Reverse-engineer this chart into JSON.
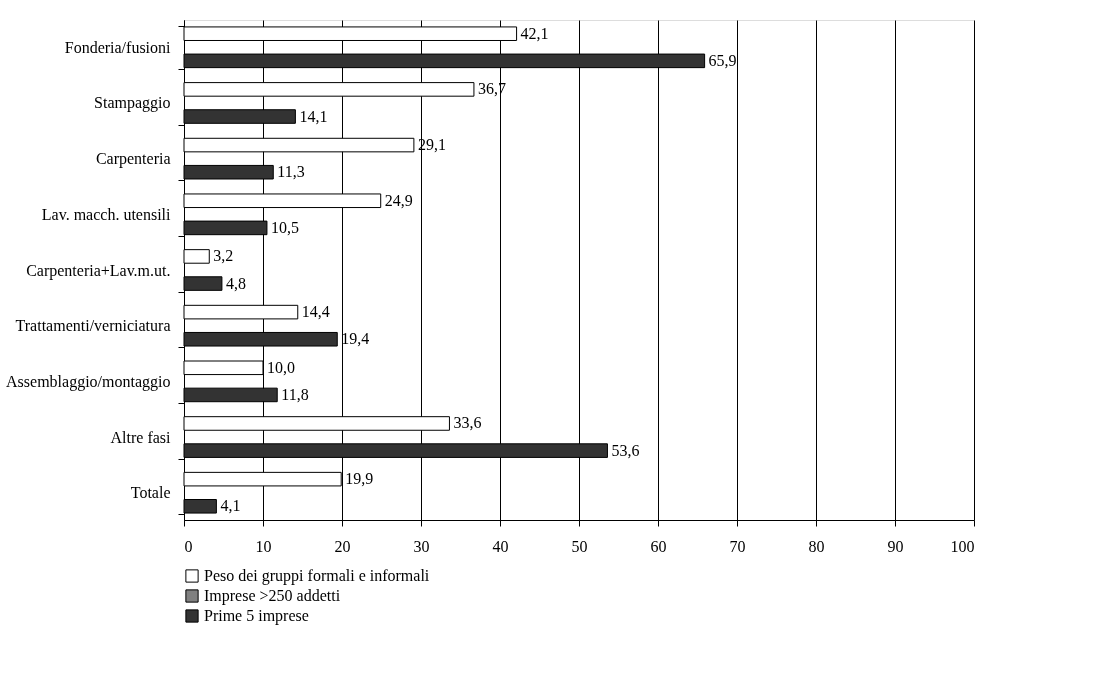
{
  "chart_data": {
    "type": "bar",
    "orientation": "horizontal",
    "categories": [
      "Fonderia/fusioni",
      "Stampaggio",
      "Carpenteria",
      "Lav. macch. utensili",
      "Carpenteria+Lav.m.ut.",
      "Trattamenti/verniciatura",
      "Assemblaggio/montaggio",
      "Altre fasi",
      "Totale"
    ],
    "series": [
      {
        "name": "Peso dei gruppi formali e informali",
        "color": "#ffffff",
        "values": [
          42.1,
          36.7,
          29.1,
          24.9,
          3.2,
          14.4,
          10.0,
          33.6,
          19.9
        ],
        "value_labels": [
          "42,1",
          "36,7",
          "29,1",
          "24,9",
          "3,2",
          "14,4",
          "10,0",
          "33,6",
          "19,9"
        ]
      },
      {
        "name": "Imprese >250 addetti",
        "color": "#808080",
        "values": [
          null,
          null,
          null,
          null,
          null,
          null,
          null,
          null,
          null
        ]
      },
      {
        "name": "Prime 5 imprese",
        "color": "#333333",
        "values": [
          65.9,
          14.1,
          11.3,
          10.5,
          4.8,
          19.4,
          11.8,
          53.6,
          4.1
        ],
        "value_labels": [
          "65,9",
          "14,1",
          "11,3",
          "10,5",
          "4,8",
          "19,4",
          "11,8",
          "53,6",
          "4,1"
        ]
      }
    ],
    "xlim": [
      0,
      100
    ],
    "xticks": [
      0,
      10,
      20,
      30,
      40,
      50,
      60,
      70,
      80,
      90,
      100
    ],
    "grid": "x",
    "legend": "bottom"
  }
}
